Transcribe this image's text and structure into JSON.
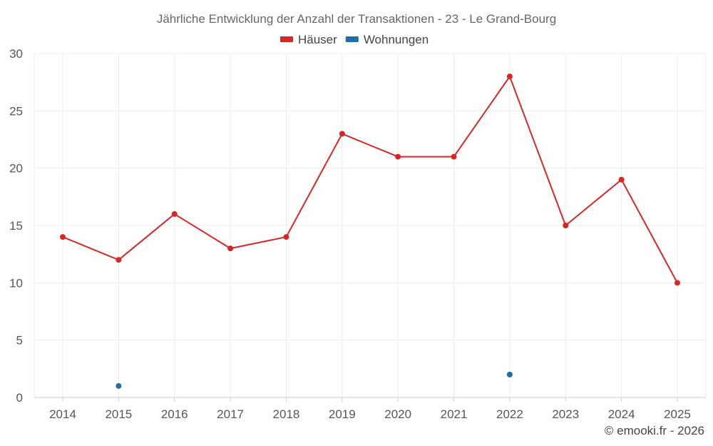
{
  "chart_data": {
    "type": "line",
    "title": "Jährliche Entwicklung der Anzahl der Transaktionen - 23 - Le Grand-Bourg",
    "categories": [
      "2014",
      "2015",
      "2016",
      "2017",
      "2018",
      "2019",
      "2020",
      "2021",
      "2022",
      "2023",
      "2024",
      "2025"
    ],
    "series": [
      {
        "name": "Häuser",
        "color": "#d62728",
        "values": [
          14,
          12,
          16,
          13,
          14,
          23,
          21,
          21,
          28,
          15,
          19,
          10
        ]
      },
      {
        "name": "Wohnungen",
        "color": "#1f6ea8",
        "values": [
          null,
          1,
          null,
          null,
          null,
          null,
          null,
          null,
          2,
          null,
          null,
          null
        ]
      }
    ],
    "y_ticks": [
      "0",
      "5",
      "10",
      "15",
      "20",
      "25",
      "30"
    ],
    "ylim": [
      0,
      30
    ],
    "grid": true,
    "legend_position": "top-center",
    "xlabel": "",
    "ylabel": ""
  },
  "credit": "© emooki.fr - 2026"
}
